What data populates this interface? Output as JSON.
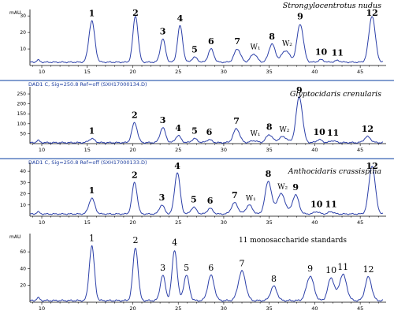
{
  "chart_data": [
    {
      "type": "line",
      "title": "Strongylocentrotus nudus",
      "ylabel": "mAU",
      "header": "",
      "xlim": [
        8.7,
        47.5
      ],
      "ylim": [
        0,
        32
      ],
      "x_ticks": [
        10,
        15,
        20,
        25,
        30,
        35,
        40,
        45
      ],
      "y_ticks": [
        10,
        20,
        30
      ],
      "baseline": 2,
      "peaks": [
        {
          "label": "1",
          "x": 15.5,
          "height": 25,
          "width": 0.32
        },
        {
          "label": "2",
          "x": 20.3,
          "height": 28,
          "width": 0.28
        },
        {
          "label": "3",
          "x": 23.3,
          "height": 14,
          "width": 0.28
        },
        {
          "label": "4",
          "x": 25.2,
          "height": 22,
          "width": 0.28
        },
        {
          "label": "5",
          "x": 26.8,
          "height": 3,
          "width": 0.3
        },
        {
          "label": "6",
          "x": 28.6,
          "height": 8,
          "width": 0.3
        },
        {
          "label": "7",
          "x": 31.5,
          "height": 8,
          "width": 0.35
        },
        {
          "label": "W₁",
          "x": 33.3,
          "height": 5,
          "width": 0.35
        },
        {
          "label": "8",
          "x": 35.3,
          "height": 11,
          "width": 0.35
        },
        {
          "label": "W₂",
          "x": 36.8,
          "height": 7,
          "width": 0.45
        },
        {
          "label": "9",
          "x": 38.4,
          "height": 23,
          "width": 0.35
        },
        {
          "label": "10",
          "x": 40.7,
          "height": 1.5,
          "width": 0.3
        },
        {
          "label": "11",
          "x": 42.5,
          "height": 1,
          "width": 0.3
        },
        {
          "label": "12",
          "x": 46.3,
          "height": 28,
          "width": 0.35
        }
      ]
    },
    {
      "type": "line",
      "title": "Glyptocidaris crenularis",
      "ylabel": "",
      "header": "DAD1 C, Sig=250.8 Ref=off (SXH17000134.D)",
      "xlim": [
        8.7,
        47.5
      ],
      "ylim": [
        0,
        270
      ],
      "x_ticks": [
        10,
        15,
        20,
        25,
        30,
        35,
        40,
        45
      ],
      "y_ticks": [
        50,
        100,
        150,
        200,
        250
      ],
      "baseline": 5,
      "peaks": [
        {
          "label": "1",
          "x": 15.5,
          "height": 20,
          "width": 0.32
        },
        {
          "label": "2",
          "x": 20.2,
          "height": 100,
          "width": 0.3
        },
        {
          "label": "3",
          "x": 23.3,
          "height": 75,
          "width": 0.3
        },
        {
          "label": "4",
          "x": 25.0,
          "height": 35,
          "width": 0.3
        },
        {
          "label": "5",
          "x": 26.8,
          "height": 20,
          "width": 0.3
        },
        {
          "label": "6",
          "x": 28.4,
          "height": 15,
          "width": 0.3
        },
        {
          "label": "7",
          "x": 31.4,
          "height": 70,
          "width": 0.35
        },
        {
          "label": "W₁",
          "x": 33.3,
          "height": 10,
          "width": 0.35
        },
        {
          "label": "8",
          "x": 35.0,
          "height": 40,
          "width": 0.35
        },
        {
          "label": "W₂",
          "x": 36.5,
          "height": 30,
          "width": 0.45
        },
        {
          "label": "9",
          "x": 38.3,
          "height": 230,
          "width": 0.35
        },
        {
          "label": "10",
          "x": 40.5,
          "height": 15,
          "width": 0.3
        },
        {
          "label": "11",
          "x": 42.0,
          "height": 10,
          "width": 0.3
        },
        {
          "label": "12",
          "x": 45.8,
          "height": 30,
          "width": 0.35
        }
      ]
    },
    {
      "type": "line",
      "title": "Anthocidaris crassispina",
      "ylabel": "",
      "header": "DAD1 C, Sig=250.8 Ref=off (SXH17000133.D)",
      "xlim": [
        8.7,
        47.5
      ],
      "ylim": [
        0,
        45
      ],
      "x_ticks": [
        10,
        15,
        20,
        25,
        30,
        35,
        40,
        45
      ],
      "y_ticks": [
        10,
        20,
        30,
        40
      ],
      "baseline": 2,
      "peaks": [
        {
          "label": "1",
          "x": 15.5,
          "height": 14,
          "width": 0.32
        },
        {
          "label": "2",
          "x": 20.2,
          "height": 28,
          "width": 0.28
        },
        {
          "label": "3",
          "x": 23.2,
          "height": 8,
          "width": 0.28
        },
        {
          "label": "4",
          "x": 24.9,
          "height": 37,
          "width": 0.3
        },
        {
          "label": "5",
          "x": 26.7,
          "height": 6,
          "width": 0.3
        },
        {
          "label": "6",
          "x": 28.5,
          "height": 5,
          "width": 0.3
        },
        {
          "label": "7",
          "x": 31.2,
          "height": 10,
          "width": 0.35
        },
        {
          "label": "W₁",
          "x": 32.8,
          "height": 8,
          "width": 0.35
        },
        {
          "label": "8",
          "x": 34.9,
          "height": 29,
          "width": 0.35
        },
        {
          "label": "W₂",
          "x": 36.3,
          "height": 18,
          "width": 0.45
        },
        {
          "label": "9",
          "x": 37.9,
          "height": 17,
          "width": 0.35
        },
        {
          "label": "10",
          "x": 40.2,
          "height": 2,
          "width": 0.3
        },
        {
          "label": "11",
          "x": 41.8,
          "height": 2,
          "width": 0.3
        },
        {
          "label": "12",
          "x": 46.3,
          "height": 43,
          "width": 0.35
        }
      ]
    },
    {
      "type": "line",
      "title": "11 monosaccharide standards",
      "ylabel": "mAU",
      "header": "",
      "xlim": [
        8.7,
        47.5
      ],
      "ylim": [
        0,
        78
      ],
      "x_ticks": [
        10,
        20,
        25,
        30,
        35,
        40,
        45
      ],
      "y_ticks": [
        20,
        40,
        60
      ],
      "baseline": 2,
      "peaks": [
        {
          "label": "1",
          "x": 15.5,
          "height": 65,
          "width": 0.28
        },
        {
          "label": "2",
          "x": 20.3,
          "height": 63,
          "width": 0.28
        },
        {
          "label": "3",
          "x": 23.3,
          "height": 30,
          "width": 0.28
        },
        {
          "label": "4",
          "x": 24.6,
          "height": 60,
          "width": 0.28
        },
        {
          "label": "5",
          "x": 25.9,
          "height": 30,
          "width": 0.3
        },
        {
          "label": "6",
          "x": 28.6,
          "height": 30,
          "width": 0.35
        },
        {
          "label": "7",
          "x": 32.0,
          "height": 35,
          "width": 0.4
        },
        {
          "label": "8",
          "x": 35.5,
          "height": 17,
          "width": 0.35
        },
        {
          "label": "9",
          "x": 39.5,
          "height": 29,
          "width": 0.4
        },
        {
          "label": "10",
          "x": 41.8,
          "height": 27,
          "width": 0.35
        },
        {
          "label": "11",
          "x": 43.1,
          "height": 31,
          "width": 0.4
        },
        {
          "label": "12",
          "x": 45.9,
          "height": 28,
          "width": 0.35
        }
      ]
    }
  ]
}
